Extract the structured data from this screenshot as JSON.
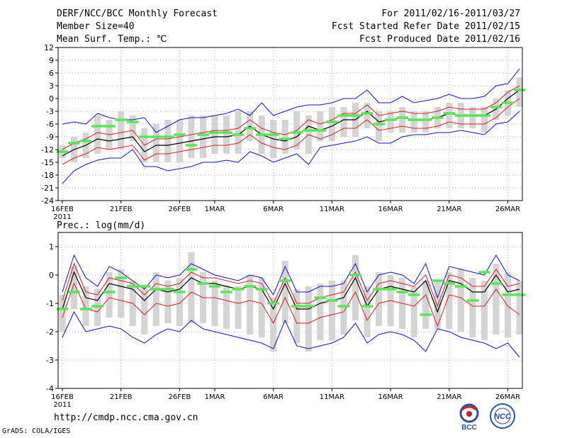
{
  "header": {
    "title": "DERF/NCC/BCC Monthly Forecast",
    "member_size": "Member Size=40",
    "variable": "Mean Surf. Temp.: ℃",
    "period": "For 2011/02/16-2011/03/27",
    "started": "Fcst Started Refer Date 2011/02/15",
    "produced": "Fcst Produced Date 2011/02/16"
  },
  "footer": {
    "url": "http://cmdp.ncc.cma.gov.cn",
    "credit": "GrADS: COLA/IGES",
    "logo_left": "BCC",
    "logo_right": "NCC"
  },
  "colors": {
    "mean": "#000000",
    "inner": "#e01c1c",
    "outer": "#1010d0",
    "box": "#d4d4d4",
    "marker": "#55e855",
    "grid": "#999999"
  },
  "chart_data": [
    {
      "type": "line",
      "title": "Mean Surf. Temp.: ℃",
      "xlabel": "",
      "ylabel": "",
      "x_ticks": [
        "16FEB\n2011",
        "21FEB",
        "26FEB",
        "1MAR",
        "6MAR",
        "11MAR",
        "16MAR",
        "21MAR",
        "26MAR"
      ],
      "x_tick_day": [
        1,
        6,
        11,
        14,
        19,
        24,
        29,
        34,
        39
      ],
      "days": 40,
      "ylim": [
        -24,
        12
      ],
      "yticks": [
        12,
        9,
        6,
        3,
        0,
        -3,
        -6,
        -9,
        -12,
        -15,
        -18,
        -21,
        -24
      ],
      "series": [
        {
          "name": "ensemble mean",
          "values": [
            -13.5,
            -12,
            -11,
            -9.5,
            -10,
            -9.5,
            -9,
            -12.5,
            -11,
            -11,
            -10.5,
            -10,
            -9.5,
            -9,
            -9,
            -8.5,
            -6.5,
            -8.5,
            -9.5,
            -10,
            -9,
            -6.5,
            -7.5,
            -6.5,
            -5,
            -5,
            -3,
            -5.5,
            -5,
            -4.5,
            -5,
            -5,
            -4.5,
            -3.5,
            -4,
            -4,
            -4,
            -2.5,
            0,
            2
          ]
        },
        {
          "name": "upper band",
          "values": [
            -12,
            -10.5,
            -9.5,
            -8,
            -8.5,
            -8,
            -7.5,
            -11,
            -9.5,
            -9.5,
            -9,
            -8.5,
            -8,
            -7.5,
            -7.5,
            -7,
            -5,
            -7,
            -8,
            -8.5,
            -7.5,
            -5,
            -6,
            -5,
            -3.5,
            -3.5,
            -1.5,
            -4,
            -3.5,
            -3,
            -3.5,
            -3.5,
            -3,
            -2,
            -2.5,
            -2.5,
            -2.5,
            -1,
            1.5,
            3
          ]
        },
        {
          "name": "lower band",
          "values": [
            -15.5,
            -14,
            -13,
            -11.5,
            -12,
            -11.5,
            -11,
            -14.5,
            -13,
            -13,
            -12.5,
            -12,
            -11.5,
            -11,
            -11,
            -10.5,
            -8.5,
            -10.5,
            -11.5,
            -12,
            -11,
            -8.5,
            -9.5,
            -8.5,
            -7,
            -7,
            -5,
            -7.5,
            -7,
            -6.5,
            -7,
            -7,
            -6.5,
            -5.5,
            -6,
            -6,
            -6,
            -4.5,
            -2,
            0
          ]
        },
        {
          "name": "maximum",
          "values": [
            -6,
            -5.5,
            -6,
            -3.5,
            -4.5,
            -5,
            -5,
            -4.5,
            -8,
            -6.5,
            -5,
            -4.5,
            -4.5,
            -4,
            -3.5,
            -2.5,
            -4,
            -1,
            -4,
            -3,
            -2,
            -1.5,
            -1.5,
            -1,
            0,
            0,
            2,
            -1,
            -1,
            0.5,
            -1,
            -0.5,
            0,
            1,
            0,
            0,
            0.5,
            3,
            3.5,
            7
          ]
        },
        {
          "name": "minimum",
          "values": [
            -20,
            -17,
            -15.5,
            -14.5,
            -14,
            -14,
            -12,
            -16,
            -16,
            -17,
            -16.5,
            -16,
            -15,
            -15,
            -14.5,
            -15,
            -12.5,
            -13.5,
            -15,
            -14,
            -13,
            -15.5,
            -11.5,
            -11,
            -10.5,
            -10,
            -9,
            -10.5,
            -10.5,
            -9,
            -8.5,
            -8.5,
            -8,
            -8,
            -7.5,
            -8,
            -8.5,
            -6,
            -5.5,
            -3
          ]
        },
        {
          "name": "observed",
          "values": [
            -12.5,
            -10.5,
            -10,
            -6.5,
            -6.5,
            -5,
            -5.5,
            -9,
            -9,
            -9,
            -8.5,
            -11,
            -8.5,
            -8,
            -8,
            -8.5,
            -7,
            -8.5,
            -8.5,
            -9.5,
            -8,
            -7.5,
            -7.5,
            -5.5,
            -4,
            -4,
            -3.5,
            -6,
            -5,
            -4.5,
            -5,
            -5,
            -4.5,
            -3.5,
            -4,
            -4,
            -4,
            -2,
            -1,
            2
          ]
        }
      ],
      "box_range": {
        "high": [
          -11,
          -9,
          -8,
          -4,
          -5,
          -3,
          -4,
          -7,
          -6,
          -5,
          -5,
          -4,
          -4,
          -4,
          -4,
          -3,
          -3,
          -4,
          -5,
          -5,
          -3,
          -4,
          -3,
          -2,
          -2,
          -1,
          -1,
          -3,
          -3,
          -2,
          -3,
          -3,
          -2,
          -1,
          -1,
          -2,
          -2,
          0,
          2,
          5
        ],
        "low": [
          -14,
          -15,
          -14,
          -13,
          -12,
          -12,
          -10,
          -15,
          -15,
          -15,
          -15,
          -14,
          -14,
          -13,
          -13,
          -13,
          -10,
          -13,
          -14,
          -13,
          -12,
          -13,
          -10,
          -10,
          -9,
          -9,
          -7,
          -10,
          -8,
          -8,
          -8,
          -8,
          -7,
          -7,
          -7,
          -7,
          -8,
          -5,
          -4,
          -2
        ]
      }
    },
    {
      "type": "line",
      "title": "Prec.: log(mm/d)",
      "xlabel": "",
      "ylabel": "",
      "x_ticks": [
        "16FEB\n2011",
        "21FEB",
        "26FEB",
        "1MAR",
        "6MAR",
        "11MAR",
        "16MAR",
        "21MAR",
        "26MAR"
      ],
      "x_tick_day": [
        1,
        6,
        11,
        14,
        19,
        24,
        29,
        34,
        39
      ],
      "days": 40,
      "ylim": [
        -4,
        1.5
      ],
      "yticks": [
        1,
        0,
        -1,
        -2,
        -3,
        -4
      ],
      "series": [
        {
          "name": "ensemble mean",
          "values": [
            -1.2,
            0.1,
            -0.8,
            -0.9,
            -0.3,
            -0.4,
            -0.5,
            -0.9,
            -0.5,
            -0.6,
            -0.5,
            -0.1,
            -0.3,
            -0.3,
            -0.4,
            -0.5,
            -0.4,
            -0.5,
            -1.2,
            -0.3,
            -1.2,
            -1.2,
            -1,
            -0.9,
            -0.8,
            -0.1,
            -1.1,
            -0.5,
            -0.4,
            -0.5,
            -0.6,
            -0.2,
            -1.3,
            -0.2,
            -0.3,
            -0.6,
            -0.6,
            0,
            -0.6,
            -0.5
          ]
        },
        {
          "name": "upper band",
          "values": [
            -0.9,
            0.4,
            -0.6,
            -0.7,
            -0.1,
            -0.2,
            -0.3,
            -0.7,
            -0.3,
            -0.4,
            -0.3,
            0.1,
            -0.1,
            -0.1,
            -0.2,
            -0.3,
            -0.2,
            -0.3,
            -1,
            -0.1,
            -1,
            -1,
            -0.8,
            -0.7,
            -0.6,
            0.1,
            -0.9,
            -0.3,
            -0.2,
            -0.3,
            -0.4,
            0,
            -1.1,
            0,
            -0.1,
            -0.4,
            -0.4,
            0.2,
            -0.4,
            -0.3
          ]
        },
        {
          "name": "lower band",
          "values": [
            -1.5,
            -0.3,
            -1.2,
            -1.3,
            -0.8,
            -0.9,
            -1,
            -1.4,
            -1,
            -1.1,
            -1,
            -0.6,
            -0.8,
            -0.8,
            -0.9,
            -1,
            -0.9,
            -1,
            -1.7,
            -0.8,
            -1.7,
            -1.7,
            -1.5,
            -1.4,
            -1.3,
            -0.6,
            -1.6,
            -1,
            -0.9,
            -1,
            -1.1,
            -0.7,
            -1.8,
            -0.7,
            -0.8,
            -1.1,
            -1.1,
            -0.5,
            -1.1,
            -1.4
          ]
        },
        {
          "name": "maximum",
          "values": [
            -0.6,
            0.7,
            -0.1,
            -0.4,
            0.3,
            0.1,
            -0.2,
            -0.5,
            0,
            -0.1,
            0,
            0.4,
            0.2,
            0,
            -0.1,
            -0.2,
            0,
            -0.1,
            -0.7,
            0.3,
            -0.6,
            -0.6,
            -0.4,
            -0.4,
            -0.3,
            0.4,
            -0.6,
            0,
            0.1,
            0,
            -0.3,
            0.4,
            -0.8,
            0.3,
            0.2,
            0.1,
            0,
            0.7,
            0,
            -0.2
          ]
        },
        {
          "name": "minimum",
          "values": [
            -2.2,
            -1.3,
            -2,
            -1.9,
            -1.8,
            -1.9,
            -2.2,
            -2.4,
            -2.1,
            -1.9,
            -2,
            -1.6,
            -1.9,
            -2,
            -2.1,
            -2.2,
            -2.3,
            -2.4,
            -2.6,
            -1.6,
            -2.5,
            -2.6,
            -2.5,
            -2.4,
            -2.2,
            -1.7,
            -2.4,
            -2.1,
            -2,
            -2.1,
            -2.3,
            -2.7,
            -1.9,
            -2,
            -2.2,
            -2.3,
            -2.4,
            -2.6,
            -2.4,
            -2.9
          ]
        },
        {
          "name": "observed",
          "values": [
            -1.2,
            -0.6,
            -1.2,
            -1.1,
            -0.6,
            -0.1,
            -0.4,
            -0.4,
            -0.5,
            -0.5,
            -0.6,
            0.2,
            -0.3,
            -0.4,
            -0.6,
            -0.5,
            -0.4,
            -0.5,
            -1,
            -0.2,
            -1.1,
            -1.1,
            -0.8,
            -0.9,
            -1.1,
            0,
            -1.1,
            -0.5,
            -0.5,
            -0.6,
            -0.7,
            -1.4,
            -0.2,
            -0.3,
            -0.4,
            -0.9,
            0.1,
            -0.3,
            -0.7,
            -0.7
          ]
        }
      ],
      "box_range": {
        "high": [
          -0.7,
          0.3,
          -0.4,
          -0.5,
          0.1,
          0.2,
          -0.2,
          -0.4,
          0.1,
          -0.2,
          -0.1,
          0.8,
          0.1,
          -0.2,
          -0.4,
          -0.4,
          0,
          -0.1,
          -0.8,
          0.5,
          -0.5,
          -0.4,
          -0.3,
          -0.2,
          -0.2,
          0.7,
          -0.4,
          0.1,
          0,
          -0.1,
          -0.4,
          -0.2,
          -0.2,
          0.1,
          0.2,
          -0.1,
          -0.2,
          0.4,
          0.1,
          -0.2
        ],
        "low": [
          -2,
          -1.2,
          -1.8,
          -1.8,
          -1.5,
          -1.5,
          -1.8,
          -2.1,
          -1.8,
          -1.7,
          -1.8,
          -1.7,
          -1.7,
          -1.8,
          -1.9,
          -1.9,
          -2.1,
          -2.2,
          -2.7,
          -1.7,
          -2.4,
          -2.7,
          -2.3,
          -2.3,
          -2.1,
          -1.6,
          -2.2,
          -1.8,
          -1.8,
          -1.9,
          -2.2,
          -1.9,
          -1.9,
          -1.9,
          -2,
          -2.2,
          -2.3,
          -2.1,
          -2.2,
          -2.1
        ]
      }
    }
  ]
}
